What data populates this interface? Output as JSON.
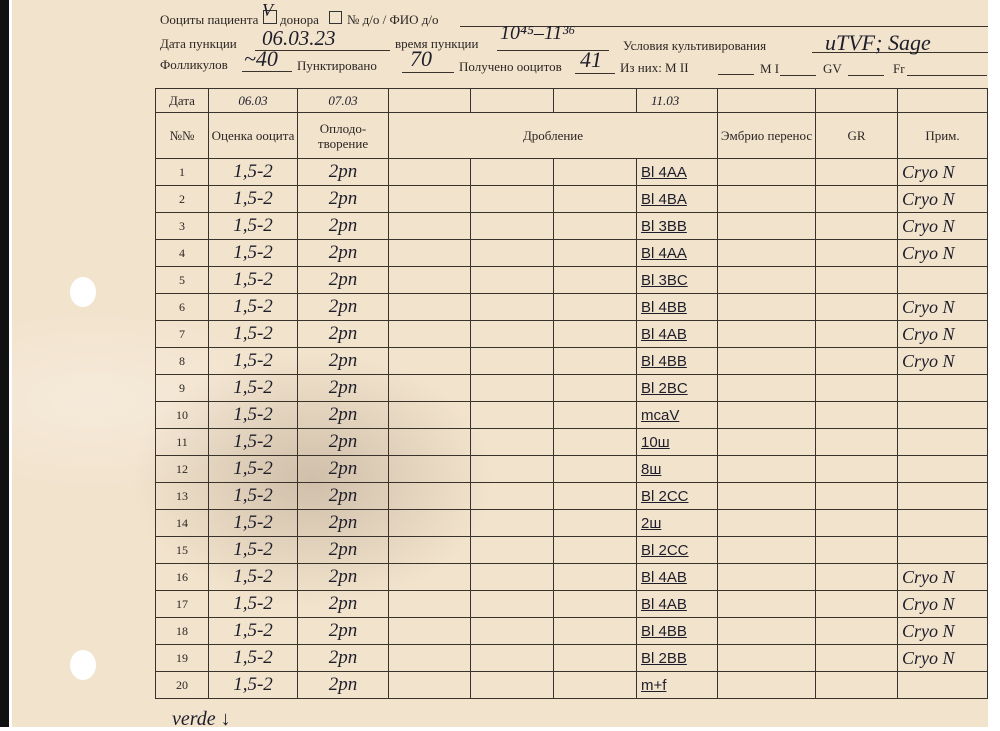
{
  "header": {
    "oocytes_label": "Ооциты пациента",
    "patient_checkbox_mark": "V",
    "donor_label": "донора",
    "donor_no_label": "№ д/о / ФИО д/о",
    "puncture_date_label": "Дата пункции",
    "puncture_date": "06.03.23",
    "puncture_time_label": "время пункции",
    "puncture_time": "10⁴⁵–11³⁶",
    "culture_label": "Условия культивирования",
    "culture_value": "uTVF; Sage",
    "follicles_label": "Фолликулов",
    "follicles": "~40",
    "punctured_label": "Пунктировано",
    "punctured": "70",
    "oocytes_obtained_label": "Получено ооцитов",
    "oocytes_obtained": "41",
    "of_them_label": "Из них: M II",
    "mi_label": "M I",
    "gv_label": "GV",
    "fr_label": "Fr"
  },
  "table": {
    "date_label": "Дата",
    "dates": [
      "06.03",
      "07.03",
      "",
      "",
      "11.03"
    ],
    "columns": [
      "№№",
      "Оценка ооцита",
      "Оплодо-творение",
      "Дробление",
      "Эмбрио перенос",
      "GR",
      "Прим."
    ],
    "rows": [
      {
        "n": "1",
        "grade": "1,5-2",
        "fert": "2pn",
        "blast": "Bl 4AA",
        "note": "Cryo N"
      },
      {
        "n": "2",
        "grade": "1,5-2",
        "fert": "2pn",
        "blast": "Bl 4BA",
        "note": "Cryo N"
      },
      {
        "n": "3",
        "grade": "1,5-2",
        "fert": "2pn",
        "blast": "Bl 3BB",
        "note": "Cryo N"
      },
      {
        "n": "4",
        "grade": "1,5-2",
        "fert": "2pn",
        "blast": "Bl 4AA",
        "note": "Cryo N"
      },
      {
        "n": "5",
        "grade": "1,5-2",
        "fert": "2pn",
        "blast": "Bl 3BC",
        "note": ""
      },
      {
        "n": "6",
        "grade": "1,5-2",
        "fert": "2pn",
        "blast": "Bl 4BB",
        "note": "Cryo N"
      },
      {
        "n": "7",
        "grade": "1,5-2",
        "fert": "2pn",
        "blast": "Bl 4AB",
        "note": "Cryo N"
      },
      {
        "n": "8",
        "grade": "1,5-2",
        "fert": "2pn",
        "blast": "Bl 4BB",
        "note": "Cryo N"
      },
      {
        "n": "9",
        "grade": "1,5-2",
        "fert": "2pn",
        "blast": "Bl 2BC",
        "note": ""
      },
      {
        "n": "10",
        "grade": "1,5-2",
        "fert": "2pn",
        "blast": "mcaV",
        "note": ""
      },
      {
        "n": "11",
        "grade": "1,5-2",
        "fert": "2pn",
        "blast": "10ш",
        "note": ""
      },
      {
        "n": "12",
        "grade": "1,5-2",
        "fert": "2pn",
        "blast": "8ш",
        "note": ""
      },
      {
        "n": "13",
        "grade": "1,5-2",
        "fert": "2pn",
        "blast": "Bl 2CC",
        "note": ""
      },
      {
        "n": "14",
        "grade": "1,5-2",
        "fert": "2pn",
        "blast": "2ш",
        "note": ""
      },
      {
        "n": "15",
        "grade": "1,5-2",
        "fert": "2pn",
        "blast": "Bl 2CC",
        "note": ""
      },
      {
        "n": "16",
        "grade": "1,5-2",
        "fert": "2pn",
        "blast": "Bl 4AB",
        "note": "Cryo N"
      },
      {
        "n": "17",
        "grade": "1,5-2",
        "fert": "2pn",
        "blast": "Bl 4AB",
        "note": "Cryo N"
      },
      {
        "n": "18",
        "grade": "1,5-2",
        "fert": "2pn",
        "blast": "Bl 4BB",
        "note": "Cryo N"
      },
      {
        "n": "19",
        "grade": "1,5-2",
        "fert": "2pn",
        "blast": "Bl 2BB",
        "note": "Cryo N"
      },
      {
        "n": "20",
        "grade": "1,5-2",
        "fert": "2pn",
        "blast": "m+f",
        "note": ""
      }
    ]
  },
  "footer": {
    "handwritten_note": "verde ↓"
  }
}
